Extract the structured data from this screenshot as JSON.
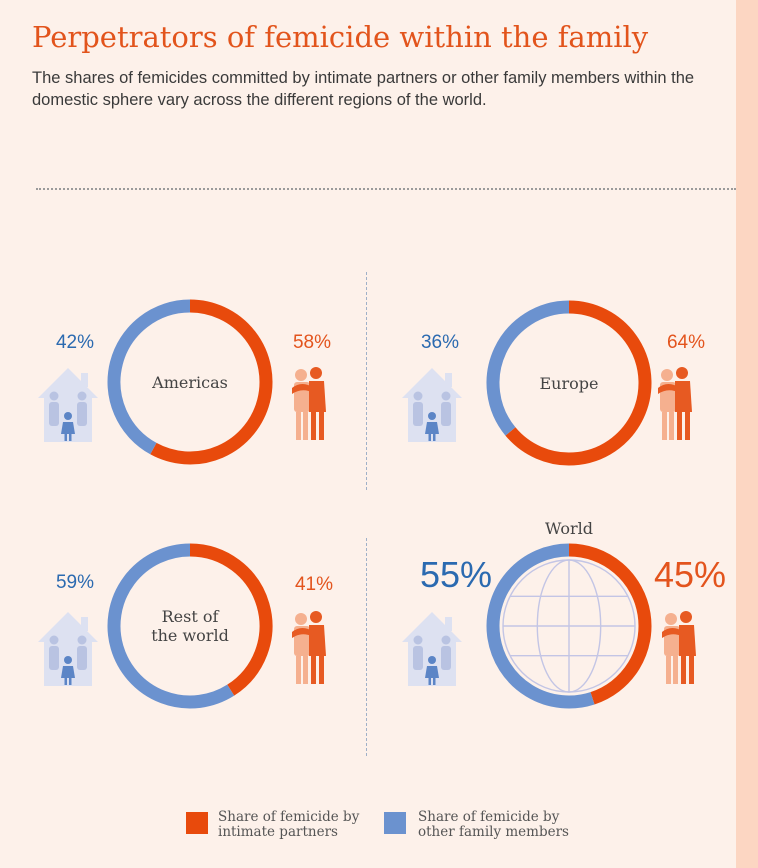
{
  "title": "Perpetrators of femicide within the family",
  "subtitle": "The shares of femicides committed by intimate partners or other family members within the domestic sphere vary across the different regions of the world.",
  "colors": {
    "intimate": "#e84a0c",
    "family": "#6b92cf",
    "intimate_text": "#e3541d",
    "family_text": "#2b6ab0",
    "house": "#dde1f1",
    "house_people": "#b9c3e2",
    "house_child": "#5c85c6",
    "couple_light": "#f5b08f",
    "couple_dark": "#e75a22"
  },
  "chart_data": {
    "type": "donut",
    "title": "Perpetrators of femicide within the family",
    "series": [
      {
        "name": "Share of femicide by intimate partners"
      },
      {
        "name": "Share of femicide by other family members"
      }
    ],
    "regions": [
      {
        "label": "Americas",
        "intimate": 58,
        "family": 42,
        "intimate_label": "58%",
        "family_label": "42%"
      },
      {
        "label": "Europe",
        "intimate": 64,
        "family": 36,
        "intimate_label": "64%",
        "family_label": "36%"
      },
      {
        "label": "Rest of\nthe world",
        "intimate": 41,
        "family": 59,
        "intimate_label": "41%",
        "family_label": "59%"
      },
      {
        "label": "World",
        "intimate": 45,
        "family": 55,
        "intimate_label": "45%",
        "family_label": "55%"
      }
    ],
    "legend": [
      {
        "label": "Share of femicide by\nintimate partners"
      },
      {
        "label": "Share of femicide by\nother family members"
      }
    ]
  }
}
